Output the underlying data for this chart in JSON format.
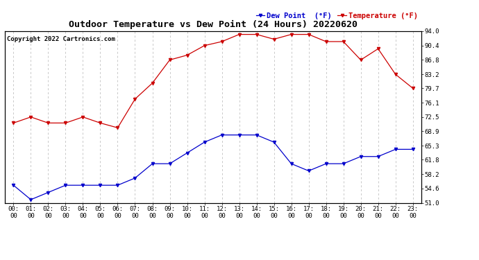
{
  "title": "Outdoor Temperature vs Dew Point (24 Hours) 20220620",
  "copyright": "Copyright 2022 Cartronics.com",
  "legend_dew": "Dew Point  (°F)",
  "legend_temp": "Temperature (°F)",
  "x_labels": [
    "00:00",
    "01:00",
    "02:00",
    "03:00",
    "04:00",
    "05:00",
    "06:00",
    "07:00",
    "08:00",
    "09:00",
    "10:00",
    "11:00",
    "12:00",
    "13:00",
    "14:00",
    "15:00",
    "16:00",
    "17:00",
    "18:00",
    "19:00",
    "20:00",
    "21:00",
    "22:00",
    "23:00"
  ],
  "temperature": [
    71.0,
    72.5,
    71.0,
    71.0,
    72.5,
    71.0,
    69.8,
    77.0,
    81.0,
    86.8,
    88.0,
    90.4,
    91.4,
    93.2,
    93.2,
    92.0,
    93.2,
    93.2,
    91.4,
    91.4,
    86.8,
    89.6,
    83.2,
    79.7
  ],
  "dew_point": [
    55.4,
    51.8,
    53.6,
    55.4,
    55.4,
    55.4,
    55.4,
    57.2,
    60.8,
    60.8,
    63.5,
    66.2,
    68.0,
    68.0,
    68.0,
    66.2,
    60.8,
    59.0,
    60.8,
    60.8,
    62.6,
    62.6,
    64.4,
    64.4
  ],
  "temp_color": "#cc0000",
  "dew_color": "#0000cc",
  "ylim": [
    51.0,
    94.0
  ],
  "yticks_right": [
    51.0,
    54.6,
    58.2,
    61.8,
    65.3,
    68.9,
    72.5,
    76.1,
    79.7,
    83.2,
    86.8,
    90.4,
    94.0
  ],
  "background_color": "#ffffff",
  "grid_color": "#c8c8c8",
  "title_fontsize": 9.5,
  "copyright_fontsize": 6.5,
  "legend_fontsize": 7.5,
  "axis_fontsize": 6.5
}
